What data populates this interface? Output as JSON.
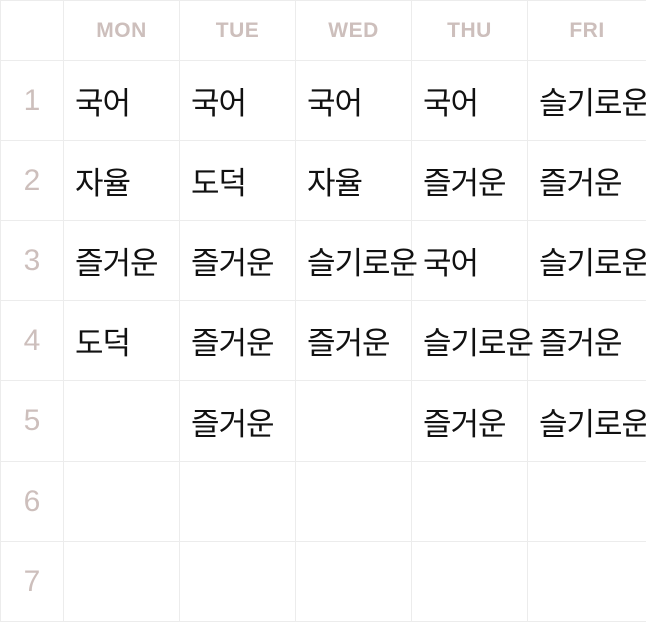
{
  "days": [
    "MON",
    "TUE",
    "WED",
    "THU",
    "FRI"
  ],
  "periods": [
    "1",
    "2",
    "3",
    "4",
    "5",
    "6",
    "7"
  ],
  "schedule": [
    [
      "국어",
      "국어",
      "국어",
      "국어",
      "슬기로운"
    ],
    [
      "자율",
      "도덕",
      "자율",
      "즐거운",
      "즐거운"
    ],
    [
      "즐거운",
      "즐거운",
      "슬기로운",
      "국어",
      "슬기로운"
    ],
    [
      "도덕",
      "즐거운",
      "즐거운",
      "슬기로운",
      "즐거운"
    ],
    [
      "",
      "즐거운",
      "",
      "즐거운",
      "슬기로운"
    ],
    [
      "",
      "",
      "",
      "",
      ""
    ],
    [
      "",
      "",
      "",
      "",
      ""
    ]
  ],
  "colors": {
    "header_text": "#cdbfbc",
    "subject_text": "#111111",
    "grid_line": "#ececec"
  }
}
